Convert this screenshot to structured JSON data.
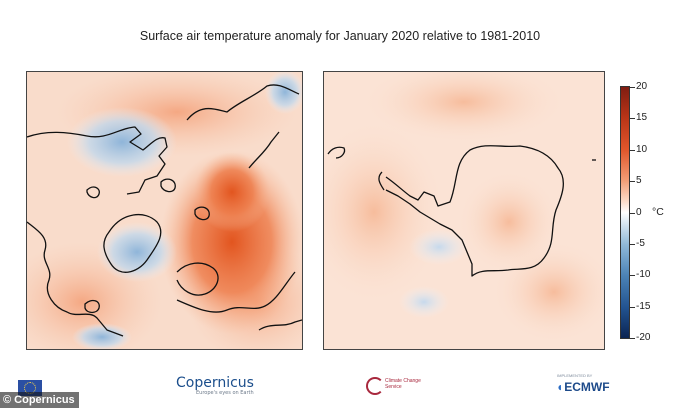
{
  "title": "Surface air temperature anomaly for January 2020 relative to 1981-2010",
  "map_panels": [
    {
      "name": "Arctic",
      "projection": "polar-stereographic-north"
    },
    {
      "name": "Antarctic",
      "projection": "polar-stereographic-south"
    }
  ],
  "colorbar": {
    "min": -20,
    "max": 20,
    "ticks": [
      "20",
      "15",
      "10",
      "5",
      "0",
      "-5",
      "-10",
      "-15",
      "-20"
    ],
    "unit": "°C",
    "colors": {
      "high": "#7f1d12",
      "warm": "#e0562b",
      "neutral": "#ffffff",
      "cool": "#8fb8d8",
      "low": "#0b2452"
    }
  },
  "credit": "© Copernicus",
  "logos": {
    "copernicus": "Copernicus",
    "copernicus_tagline": "Europe's eyes on Earth",
    "c3s": "Climate Change Service",
    "ecmwf": "ECMWF",
    "ecmwf_tagline": "IMPLEMENTED BY"
  }
}
